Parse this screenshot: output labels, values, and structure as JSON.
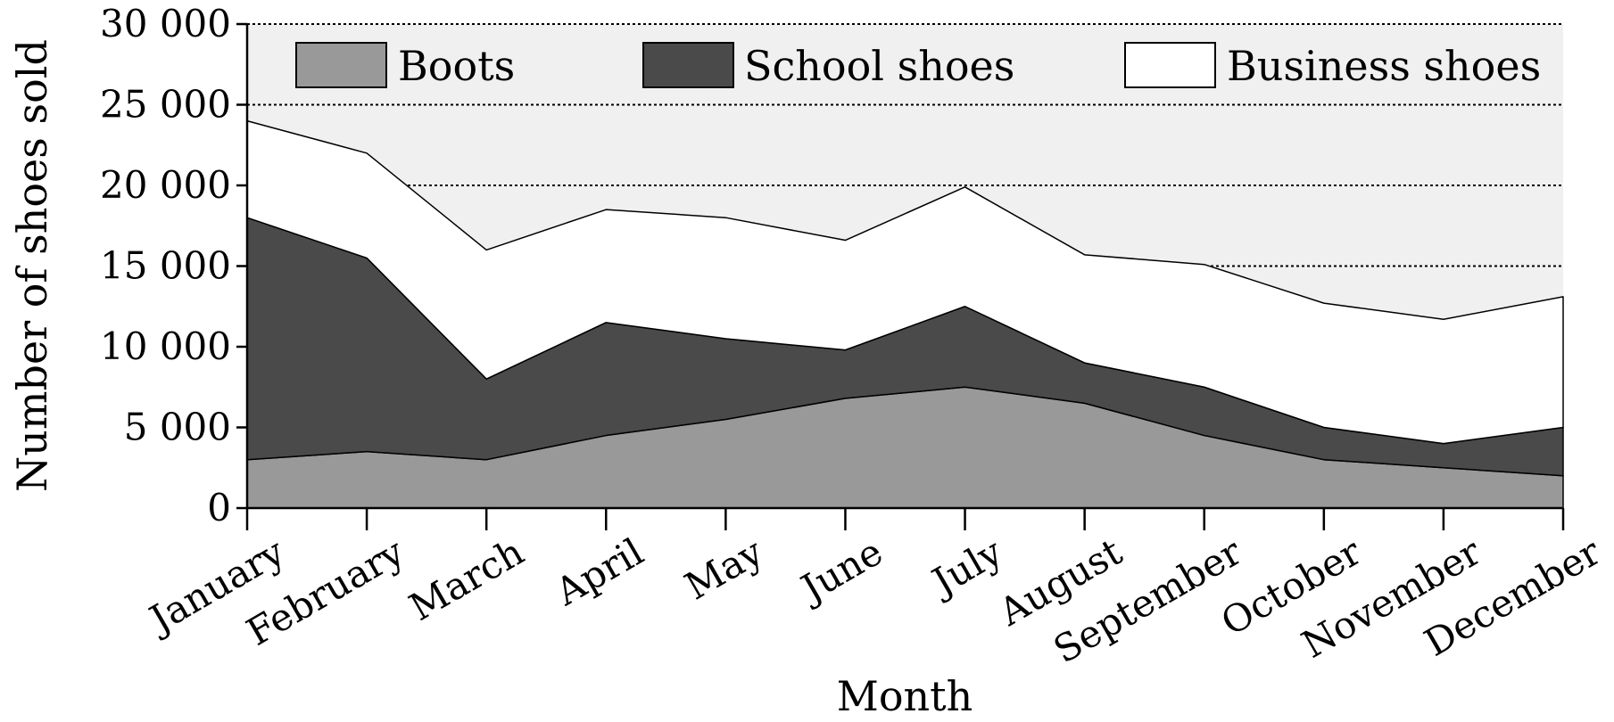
{
  "chart_data": {
    "type": "area",
    "stacked": true,
    "categories": [
      "January",
      "February",
      "March",
      "April",
      "May",
      "June",
      "July",
      "August",
      "September",
      "October",
      "November",
      "December"
    ],
    "series": [
      {
        "name": "Boots",
        "values": [
          3000,
          3500,
          3000,
          4500,
          5500,
          6800,
          7500,
          6500,
          4500,
          3000,
          2500,
          2000
        ],
        "color": "#999999"
      },
      {
        "name": "School shoes",
        "values": [
          15000,
          12000,
          5000,
          7000,
          5000,
          3000,
          5000,
          2500,
          3000,
          2000,
          1500,
          3000
        ],
        "color": "#4a4a4a"
      },
      {
        "name": "Business shoes",
        "values": [
          6000,
          6500,
          8000,
          7000,
          7500,
          6800,
          7400,
          6700,
          7600,
          7700,
          7700,
          8100
        ],
        "color": "#ffffff"
      }
    ],
    "xlabel": "Month",
    "ylabel": "Number of shoes sold",
    "ylim": [
      0,
      30000
    ],
    "yticks": [
      0,
      5000,
      10000,
      15000,
      20000,
      25000,
      30000
    ],
    "ytick_labels": [
      "0",
      "5 000",
      "10 000",
      "15 000",
      "20 000",
      "25 000",
      "30 000"
    ],
    "grid": "dotted horizontal",
    "background": "#f0f0f0",
    "legend": "top"
  }
}
